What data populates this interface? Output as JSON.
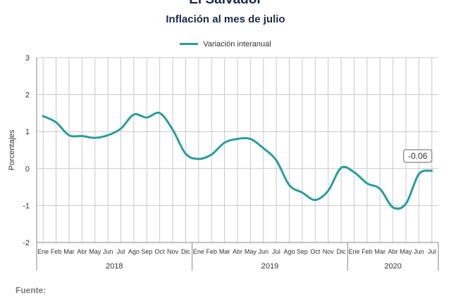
{
  "header": {
    "title": "El Salvador",
    "subtitle": "Inflación al mes de julio"
  },
  "footer": {
    "source_label": "Fuente:"
  },
  "colors": {
    "series": "#2a9d9d",
    "grid": "#c8c8c8",
    "axis": "#888888"
  },
  "chart_data": {
    "type": "line",
    "ylabel": "Porcentajes",
    "ylim": [
      -2,
      3
    ],
    "yticks": [
      -2,
      -1,
      0,
      1,
      2,
      3
    ],
    "grid": true,
    "legend": "top-center",
    "x": [
      "Ene",
      "Feb",
      "Mar",
      "Abr",
      "May",
      "Jun",
      "Jul",
      "Ago",
      "Sep",
      "Oct",
      "Nov",
      "Dic",
      "Ene",
      "Feb",
      "Mar",
      "Abr",
      "May",
      "Jun",
      "Jul",
      "Ago",
      "Sep",
      "Oct",
      "Nov",
      "Dic",
      "Ene",
      "Feb",
      "Mar",
      "Abr",
      "May",
      "Jun",
      "Jul"
    ],
    "years": [
      {
        "label": "2018",
        "start": 0,
        "end": 11
      },
      {
        "label": "2019",
        "start": 12,
        "end": 23
      },
      {
        "label": "2020",
        "start": 24,
        "end": 30
      }
    ],
    "series": [
      {
        "name": "Variación interanual",
        "values": [
          1.42,
          1.25,
          0.9,
          0.88,
          0.83,
          0.9,
          1.08,
          1.46,
          1.38,
          1.5,
          1.05,
          0.4,
          0.26,
          0.38,
          0.7,
          0.8,
          0.8,
          0.55,
          0.22,
          -0.45,
          -0.65,
          -0.85,
          -0.6,
          0.02,
          -0.1,
          -0.4,
          -0.55,
          -1.05,
          -0.95,
          -0.15,
          -0.06
        ]
      }
    ],
    "annotations": [
      {
        "index": 30,
        "text": "-0.06"
      }
    ]
  }
}
